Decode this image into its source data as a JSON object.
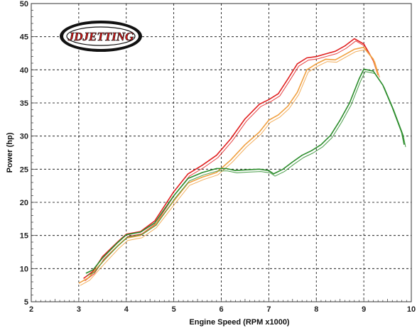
{
  "chart_data": {
    "type": "line",
    "xlabel": "Engine Speed (RPM x1000)",
    "ylabel": "Power (hp)",
    "xlim": [
      2,
      10
    ],
    "ylim": [
      5,
      50
    ],
    "x_ticks": [
      "2",
      "3",
      "4",
      "5",
      "6",
      "7",
      "8",
      "9",
      "10"
    ],
    "y_ticks": [
      "5",
      "10",
      "15",
      "20",
      "25",
      "30",
      "35",
      "40",
      "45",
      "50"
    ],
    "grid": true,
    "logo_text": "JDJETTING",
    "series": [
      {
        "color": "#e02020",
        "x": [
          3.1,
          3.3,
          3.5,
          3.8,
          4.0,
          4.3,
          4.6,
          5.0,
          5.3,
          5.6,
          5.9,
          6.2,
          6.5,
          6.8,
          7.0,
          7.2,
          7.4,
          7.6,
          7.8,
          8.0,
          8.2,
          8.4,
          8.6,
          8.8,
          9.0,
          9.2,
          9.3
        ],
        "y": [
          8.5,
          9.6,
          11.8,
          13.9,
          15.2,
          15.6,
          17.2,
          21.6,
          24.3,
          25.6,
          27.1,
          29.6,
          32.6,
          34.8,
          35.5,
          36.4,
          38.6,
          40.9,
          41.8,
          42.0,
          42.4,
          42.8,
          43.6,
          44.7,
          43.9,
          41.4,
          39.2
        ]
      },
      {
        "color": "#f0a040",
        "x": [
          3.0,
          3.2,
          3.5,
          3.8,
          4.0,
          4.3,
          4.6,
          5.0,
          5.3,
          5.6,
          5.9,
          6.2,
          6.5,
          6.8,
          7.0,
          7.2,
          7.4,
          7.6,
          7.8,
          8.0,
          8.2,
          8.4,
          8.6,
          8.8,
          9.0,
          9.2,
          9.3
        ],
        "y": [
          7.8,
          8.6,
          11.0,
          13.3,
          14.6,
          15.0,
          16.5,
          20.2,
          22.9,
          23.8,
          24.5,
          26.4,
          28.7,
          30.6,
          32.4,
          33.2,
          34.5,
          36.6,
          40.0,
          40.9,
          41.6,
          41.5,
          42.3,
          43.1,
          43.4,
          41.6,
          39.2
        ]
      },
      {
        "color": "#2a8c2a",
        "x": [
          3.15,
          3.3,
          3.5,
          3.8,
          4.0,
          4.3,
          4.6,
          5.0,
          5.3,
          5.6,
          5.9,
          6.1,
          6.3,
          6.5,
          6.8,
          7.0,
          7.1,
          7.3,
          7.5,
          7.7,
          7.9,
          8.1,
          8.3,
          8.5,
          8.7,
          8.9,
          9.0,
          9.2,
          9.4,
          9.6,
          9.8,
          9.85
        ],
        "y": [
          9.3,
          9.8,
          11.6,
          13.8,
          15.1,
          15.5,
          16.9,
          21.0,
          23.6,
          24.5,
          25.1,
          25.1,
          24.8,
          24.9,
          25.0,
          24.8,
          24.3,
          25.0,
          26.1,
          27.1,
          27.8,
          28.7,
          30.1,
          32.4,
          35.0,
          38.6,
          40.1,
          39.8,
          37.7,
          34.3,
          30.5,
          28.7
        ]
      }
    ]
  }
}
